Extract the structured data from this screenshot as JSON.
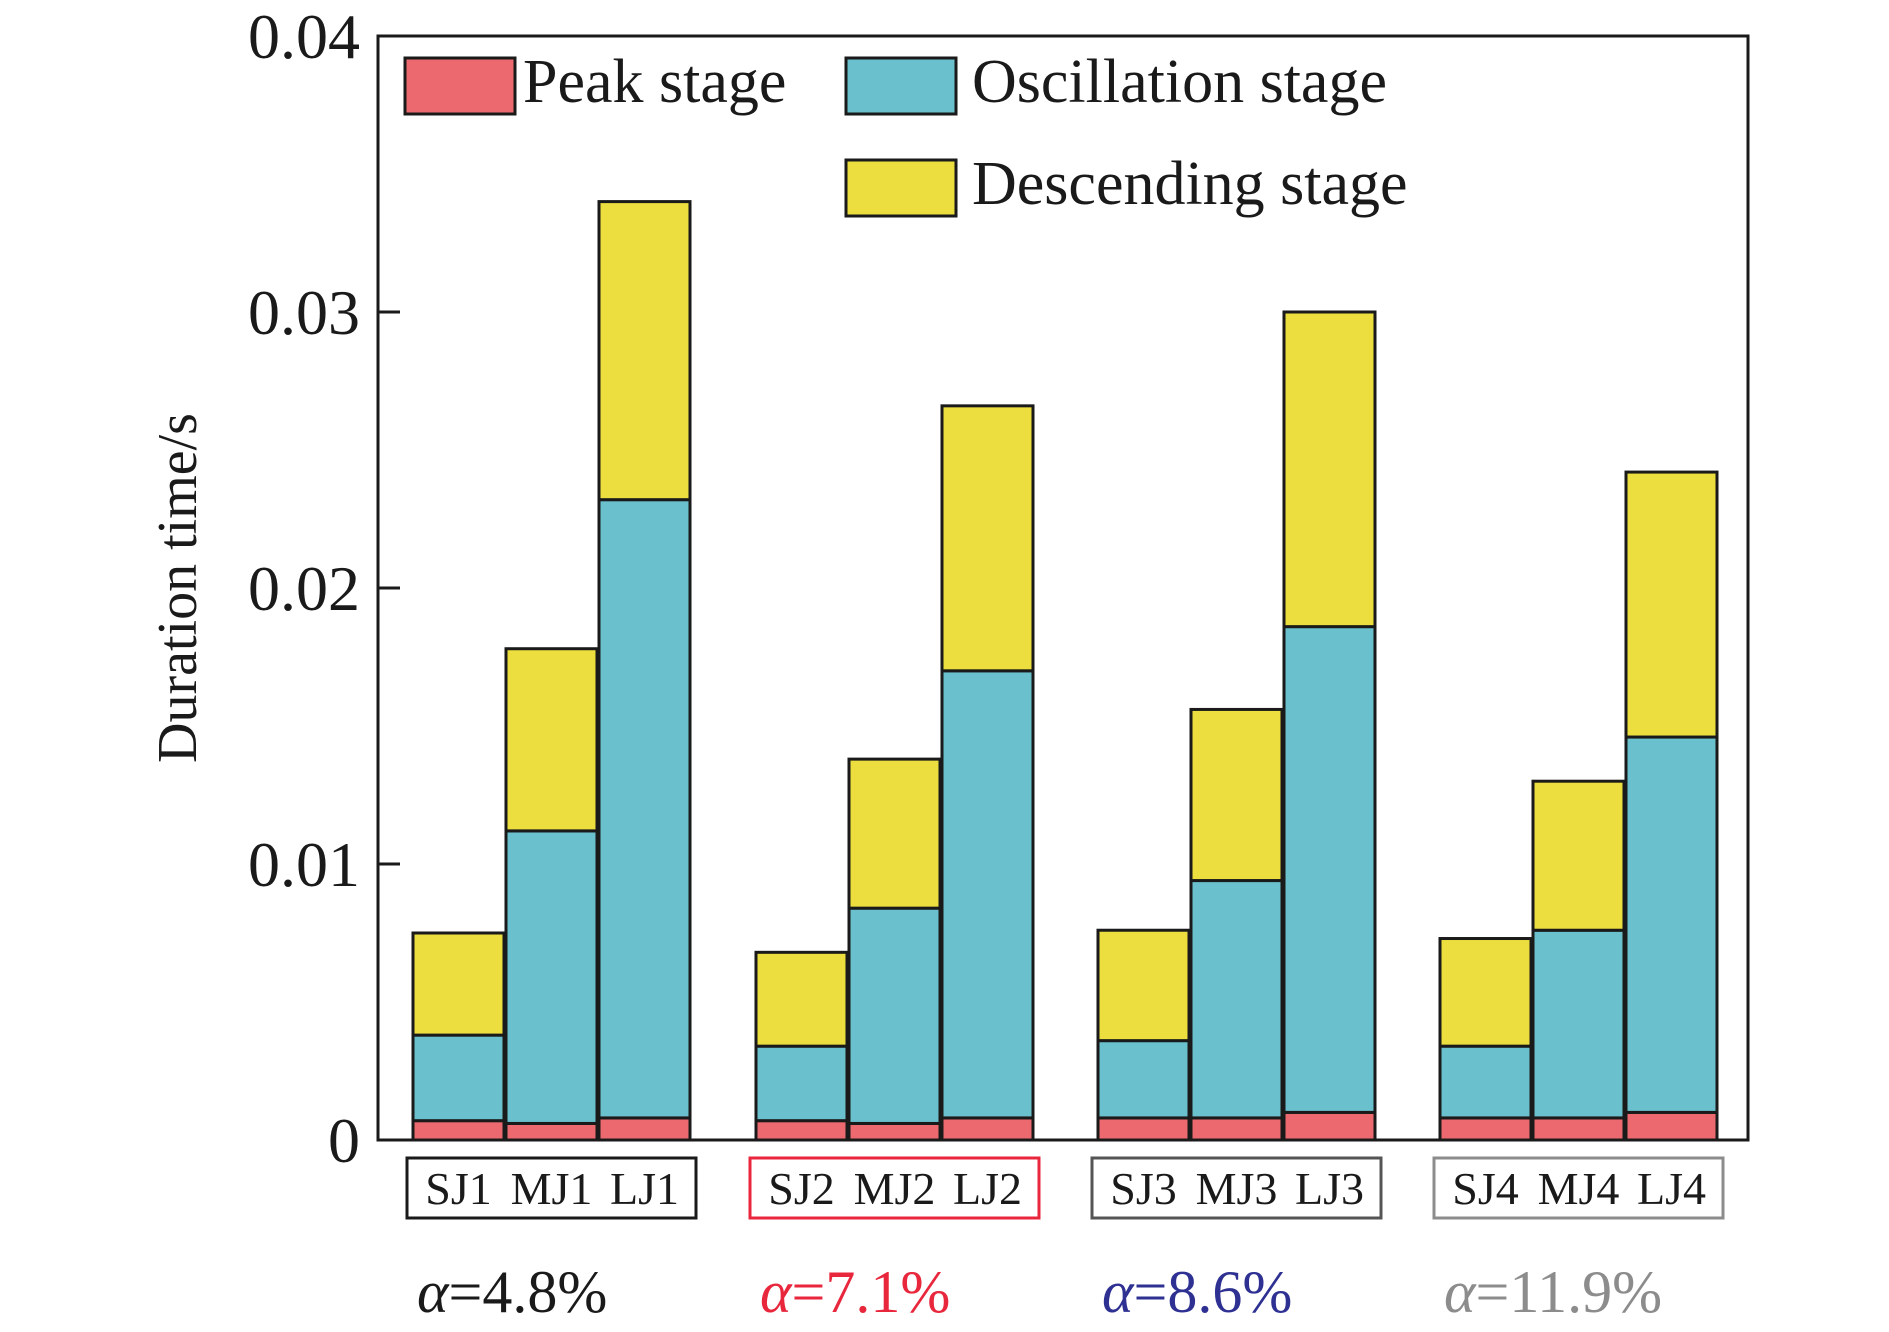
{
  "chart_data": {
    "type": "bar",
    "stacked": true,
    "ylabel": "Duration time/s",
    "ylim": [
      0,
      0.04
    ],
    "yticks": [
      "0",
      "0.01",
      "0.02",
      "0.03",
      "0.04"
    ],
    "grid": false,
    "legend_position": "top",
    "groups": [
      {
        "categories": [
          "SJ1",
          "MJ1",
          "LJ1"
        ],
        "label_symbol": "α",
        "label_value": "=4.8%",
        "label_color": "#1a1a1a",
        "box_color": "#1a1a1a"
      },
      {
        "categories": [
          "SJ2",
          "MJ2",
          "LJ2"
        ],
        "label_symbol": "α",
        "label_value": "=7.1%",
        "label_color": "#e8263c",
        "box_color": "#e8263c"
      },
      {
        "categories": [
          "SJ3",
          "MJ3",
          "LJ3"
        ],
        "label_symbol": "α",
        "label_value": "=8.6%",
        "label_color": "#2e3192",
        "box_color": "#555555"
      },
      {
        "categories": [
          "SJ4",
          "MJ4",
          "LJ4"
        ],
        "label_symbol": "α",
        "label_value": "=11.9%",
        "label_color": "#8c8c8c",
        "box_color": "#8c8c8c"
      }
    ],
    "categories": [
      "SJ1",
      "MJ1",
      "LJ1",
      "SJ2",
      "MJ2",
      "LJ2",
      "SJ3",
      "MJ3",
      "LJ3",
      "SJ4",
      "MJ4",
      "LJ4"
    ],
    "series": [
      {
        "name": "Peak stage",
        "color": "#ec6a6f",
        "values": [
          0.0007,
          0.0006,
          0.0008,
          0.0007,
          0.0006,
          0.0008,
          0.0008,
          0.0008,
          0.001,
          0.0008,
          0.0008,
          0.001
        ]
      },
      {
        "name": "Oscillation stage",
        "color": "#6ac0cc",
        "values": [
          0.0031,
          0.0106,
          0.0224,
          0.0027,
          0.0078,
          0.0162,
          0.0028,
          0.0086,
          0.0176,
          0.0026,
          0.0068,
          0.0136
        ]
      },
      {
        "name": "Descending stage",
        "color": "#ebde3e",
        "values": [
          0.0037,
          0.0066,
          0.0108,
          0.0034,
          0.0054,
          0.0096,
          0.004,
          0.0062,
          0.0114,
          0.0039,
          0.0054,
          0.0096
        ]
      }
    ]
  }
}
